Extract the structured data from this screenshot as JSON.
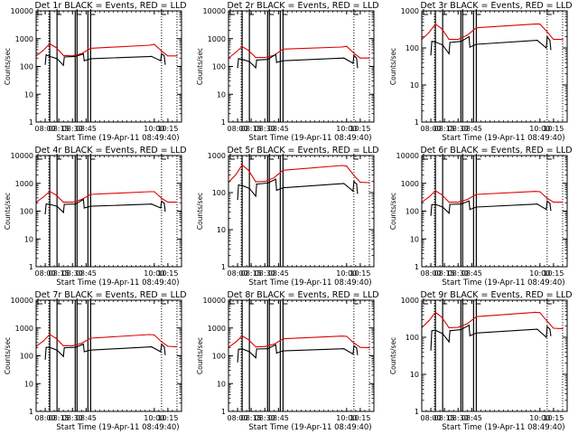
{
  "colors": {
    "events": "#000000",
    "lld": "#e00000",
    "background": "#ffffff",
    "axes": "#000000"
  },
  "chart_data": [
    {
      "type": "line",
      "panel": 1,
      "title": "Det 1r BLACK = Events, RED = LLD",
      "xlabel": "Start Time (19-Apr-11 08:49:40)",
      "ylabel": "Counts/sec",
      "yscale": "log",
      "ylim": [
        1,
        10000
      ],
      "yticks": [
        "1",
        "10",
        "100",
        "1000",
        "10000"
      ],
      "xlim": [
        "07:50",
        "10:30"
      ],
      "xticks": [
        "08:00",
        "08:15",
        "08:30",
        "08:45",
        "10:00",
        "10:15"
      ],
      "legend": "title",
      "series": [
        {
          "name": "LLD",
          "color": "red",
          "x": [
            "07:50",
            "07:58",
            "08:05",
            "08:12",
            "08:20",
            "08:30",
            "08:40",
            "08:50",
            "09:55",
            "10:00",
            "10:08",
            "10:15",
            "10:25"
          ],
          "y": [
            240,
            380,
            650,
            480,
            250,
            240,
            290,
            450,
            580,
            620,
            360,
            240,
            240
          ]
        },
        {
          "name": "Events",
          "color": "black",
          "x": [
            "08:00",
            "08:01",
            "08:05",
            "08:13",
            "08:20",
            "08:21",
            "08:33",
            "08:42",
            "08:43",
            "08:50",
            "09:57",
            "10:07",
            "10:08",
            "10:11",
            "10:12"
          ],
          "y": [
            120,
            260,
            230,
            190,
            110,
            220,
            230,
            280,
            160,
            190,
            230,
            160,
            290,
            240,
            120
          ]
        }
      ]
    },
    {
      "type": "line",
      "panel": 2,
      "title": "Det 2r BLACK = Events, RED = LLD",
      "xlabel": "Start Time (19-Apr-11 08:49:40)",
      "ylabel": "Counts/sec",
      "yscale": "log",
      "ylim": [
        1,
        10000
      ],
      "yticks": [
        "1",
        "10",
        "100",
        "1000",
        "10000"
      ],
      "xlim": [
        "07:50",
        "10:30"
      ],
      "xticks": [
        "08:00",
        "08:15",
        "08:30",
        "08:45",
        "10:00",
        "10:15"
      ],
      "legend": "title",
      "series": [
        {
          "name": "LLD",
          "color": "red",
          "x": [
            "07:50",
            "07:58",
            "08:05",
            "08:12",
            "08:20",
            "08:30",
            "08:40",
            "08:50",
            "09:55",
            "10:00",
            "10:08",
            "10:15",
            "10:25"
          ],
          "y": [
            200,
            320,
            520,
            380,
            210,
            210,
            250,
            420,
            500,
            530,
            300,
            200,
            200
          ]
        },
        {
          "name": "Events",
          "color": "black",
          "x": [
            "08:00",
            "08:01",
            "08:05",
            "08:13",
            "08:20",
            "08:21",
            "08:33",
            "08:42",
            "08:43",
            "08:50",
            "09:57",
            "10:07",
            "10:08",
            "10:11",
            "10:12"
          ],
          "y": [
            90,
            190,
            180,
            150,
            90,
            170,
            180,
            270,
            140,
            160,
            200,
            130,
            250,
            200,
            90
          ]
        }
      ]
    },
    {
      "type": "line",
      "panel": 3,
      "title": "Det 3r BLACK = Events, RED = LLD",
      "xlabel": "Start Time (19-Apr-11 08:49:40)",
      "ylabel": "Counts/sec",
      "yscale": "log",
      "ylim": [
        1,
        1000
      ],
      "yticks": [
        "1",
        "10",
        "100",
        "1000"
      ],
      "xlim": [
        "07:50",
        "10:30"
      ],
      "xticks": [
        "08:00",
        "08:15",
        "08:30",
        "08:45",
        "10:00",
        "10:15"
      ],
      "legend": "title",
      "series": [
        {
          "name": "LLD",
          "color": "red",
          "x": [
            "07:50",
            "07:58",
            "08:05",
            "08:12",
            "08:20",
            "08:30",
            "08:40",
            "08:50",
            "09:55",
            "10:00",
            "10:08",
            "10:15",
            "10:25"
          ],
          "y": [
            170,
            260,
            440,
            330,
            170,
            170,
            220,
            350,
            440,
            440,
            270,
            170,
            170
          ]
        },
        {
          "name": "Events",
          "color": "black",
          "x": [
            "08:00",
            "08:01",
            "08:05",
            "08:13",
            "08:20",
            "08:21",
            "08:33",
            "08:42",
            "08:43",
            "08:50",
            "09:57",
            "10:07",
            "10:08",
            "10:11",
            "10:12"
          ],
          "y": [
            65,
            150,
            145,
            120,
            70,
            140,
            150,
            200,
            105,
            125,
            160,
            100,
            200,
            160,
            90
          ]
        }
      ]
    },
    {
      "type": "line",
      "panel": 4,
      "title": "Det 4r BLACK = Events, RED = LLD",
      "xlabel": "Start Time (19-Apr-11 08:49:40)",
      "ylabel": "Counts/sec",
      "yscale": "log",
      "ylim": [
        1,
        10000
      ],
      "yticks": [
        "1",
        "10",
        "100",
        "1000",
        "10000"
      ],
      "xlim": [
        "07:50",
        "10:30"
      ],
      "xticks": [
        "08:00",
        "08:15",
        "08:30",
        "08:45",
        "10:00",
        "10:15"
      ],
      "legend": "title",
      "series": [
        {
          "name": "LLD",
          "color": "red",
          "x": [
            "07:50",
            "07:58",
            "08:05",
            "08:12",
            "08:20",
            "08:30",
            "08:40",
            "08:50",
            "09:55",
            "10:00",
            "10:08",
            "10:15",
            "10:25"
          ],
          "y": [
            210,
            320,
            510,
            380,
            210,
            210,
            260,
            400,
            500,
            500,
            290,
            210,
            210
          ]
        },
        {
          "name": "Events",
          "color": "black",
          "x": [
            "08:00",
            "08:01",
            "08:05",
            "08:13",
            "08:20",
            "08:21",
            "08:33",
            "08:42",
            "08:43",
            "08:50",
            "09:57",
            "10:07",
            "10:08",
            "10:11",
            "10:12"
          ],
          "y": [
            80,
            180,
            175,
            150,
            90,
            175,
            180,
            260,
            130,
            150,
            180,
            130,
            230,
            190,
            100
          ]
        }
      ]
    },
    {
      "type": "line",
      "panel": 5,
      "title": "Det 5r BLACK = Events, RED = LLD",
      "xlabel": "Start Time (19-Apr-11 08:49:40)",
      "ylabel": "Counts/sec",
      "yscale": "log",
      "ylim": [
        1,
        1000
      ],
      "yticks": [
        "1",
        "10",
        "100",
        "1000"
      ],
      "xlim": [
        "07:50",
        "10:30"
      ],
      "xticks": [
        "08:00",
        "08:15",
        "08:30",
        "08:45",
        "10:00",
        "10:15"
      ],
      "legend": "title",
      "series": [
        {
          "name": "LLD",
          "color": "red",
          "x": [
            "07:50",
            "07:58",
            "08:05",
            "08:12",
            "08:20",
            "08:30",
            "08:40",
            "08:50",
            "09:55",
            "10:00",
            "10:08",
            "10:15",
            "10:25"
          ],
          "y": [
            190,
            300,
            560,
            400,
            195,
            200,
            250,
            400,
            540,
            520,
            290,
            190,
            185
          ]
        },
        {
          "name": "Events",
          "color": "black",
          "x": [
            "08:00",
            "08:01",
            "08:05",
            "08:13",
            "08:20",
            "08:21",
            "08:33",
            "08:42",
            "08:43",
            "08:50",
            "09:57",
            "10:07",
            "10:08",
            "10:11",
            "10:12"
          ],
          "y": [
            65,
            160,
            155,
            130,
            80,
            170,
            180,
            230,
            115,
            135,
            175,
            110,
            200,
            170,
            95
          ]
        }
      ]
    },
    {
      "type": "line",
      "panel": 6,
      "title": "Det 6r BLACK = Events, RED = LLD",
      "xlabel": "Start Time (19-Apr-11 08:49:40)",
      "ylabel": "Counts/sec",
      "yscale": "log",
      "ylim": [
        1,
        10000
      ],
      "yticks": [
        "1",
        "10",
        "100",
        "1000",
        "10000"
      ],
      "xlim": [
        "07:50",
        "10:30"
      ],
      "xticks": [
        "08:00",
        "08:15",
        "08:30",
        "08:45",
        "10:00",
        "10:15"
      ],
      "legend": "title",
      "series": [
        {
          "name": "LLD",
          "color": "red",
          "x": [
            "07:50",
            "07:58",
            "08:05",
            "08:12",
            "08:20",
            "08:30",
            "08:40",
            "08:50",
            "09:55",
            "10:00",
            "10:08",
            "10:15",
            "10:25"
          ],
          "y": [
            210,
            320,
            540,
            390,
            210,
            210,
            260,
            400,
            510,
            500,
            290,
            210,
            210
          ]
        },
        {
          "name": "Events",
          "color": "black",
          "x": [
            "08:00",
            "08:01",
            "08:05",
            "08:13",
            "08:20",
            "08:21",
            "08:33",
            "08:42",
            "08:43",
            "08:50",
            "09:57",
            "10:07",
            "10:08",
            "10:11",
            "10:12"
          ],
          "y": [
            70,
            170,
            175,
            140,
            85,
            175,
            180,
            230,
            115,
            140,
            180,
            115,
            230,
            190,
            105
          ]
        }
      ]
    },
    {
      "type": "line",
      "panel": 7,
      "title": "Det 7r BLACK = Events, RED = LLD",
      "xlabel": "Start Time (19-Apr-11 08:49:40)",
      "ylabel": "Counts/sec",
      "yscale": "log",
      "ylim": [
        1,
        10000
      ],
      "yticks": [
        "1",
        "10",
        "100",
        "1000",
        "10000"
      ],
      "xlim": [
        "07:50",
        "10:30"
      ],
      "xticks": [
        "08:00",
        "08:15",
        "08:30",
        "08:45",
        "10:00",
        "10:15"
      ],
      "legend": "title",
      "series": [
        {
          "name": "LLD",
          "color": "red",
          "x": [
            "07:50",
            "07:58",
            "08:05",
            "08:12",
            "08:20",
            "08:30",
            "08:40",
            "08:50",
            "09:55",
            "10:00",
            "10:08",
            "10:15",
            "10:25"
          ],
          "y": [
            220,
            340,
            590,
            420,
            230,
            230,
            280,
            430,
            580,
            560,
            320,
            220,
            210
          ]
        },
        {
          "name": "Events",
          "color": "black",
          "x": [
            "08:00",
            "08:01",
            "08:05",
            "08:13",
            "08:20",
            "08:21",
            "08:33",
            "08:42",
            "08:43",
            "08:50",
            "09:57",
            "10:07",
            "10:08",
            "10:11",
            "10:12"
          ],
          "y": [
            75,
            200,
            200,
            160,
            95,
            195,
            200,
            260,
            140,
            160,
            210,
            140,
            260,
            210,
            110
          ]
        }
      ]
    },
    {
      "type": "line",
      "panel": 8,
      "title": "Det 8r BLACK = Events, RED = LLD",
      "xlabel": "Start Time (19-Apr-11 08:49:40)",
      "ylabel": "Counts/sec",
      "yscale": "log",
      "ylim": [
        1,
        10000
      ],
      "yticks": [
        "1",
        "10",
        "100",
        "1000",
        "10000"
      ],
      "xlim": [
        "07:50",
        "10:30"
      ],
      "xticks": [
        "08:00",
        "08:15",
        "08:30",
        "08:45",
        "10:00",
        "10:15"
      ],
      "legend": "title",
      "series": [
        {
          "name": "LLD",
          "color": "red",
          "x": [
            "07:50",
            "07:58",
            "08:05",
            "08:12",
            "08:20",
            "08:30",
            "08:40",
            "08:50",
            "09:55",
            "10:00",
            "10:08",
            "10:15",
            "10:25"
          ],
          "y": [
            200,
            310,
            520,
            380,
            210,
            215,
            260,
            410,
            510,
            500,
            290,
            200,
            195
          ]
        },
        {
          "name": "Events",
          "color": "black",
          "x": [
            "08:00",
            "08:01",
            "08:05",
            "08:13",
            "08:20",
            "08:21",
            "08:33",
            "08:42",
            "08:43",
            "08:50",
            "09:57",
            "10:07",
            "10:08",
            "10:11",
            "10:12"
          ],
          "y": [
            60,
            170,
            180,
            140,
            85,
            175,
            180,
            250,
            125,
            150,
            180,
            115,
            230,
            190,
            110
          ]
        }
      ]
    },
    {
      "type": "line",
      "panel": 9,
      "title": "Det 9r BLACK = Events, RED = LLD",
      "xlabel": "Start Time (19-Apr-11 08:49:40)",
      "ylabel": "Counts/sec",
      "yscale": "log",
      "ylim": [
        1,
        1000
      ],
      "yticks": [
        "1",
        "10",
        "100",
        "1000"
      ],
      "xlim": [
        "07:50",
        "10:30"
      ],
      "xticks": [
        "08:00",
        "08:15",
        "08:30",
        "08:45",
        "10:00",
        "10:15"
      ],
      "legend": "title",
      "series": [
        {
          "name": "LLD",
          "color": "red",
          "x": [
            "07:50",
            "07:58",
            "08:05",
            "08:12",
            "08:20",
            "08:30",
            "08:40",
            "08:50",
            "09:55",
            "10:00",
            "10:08",
            "10:15",
            "10:25"
          ],
          "y": [
            180,
            280,
            470,
            350,
            180,
            185,
            230,
            360,
            470,
            460,
            270,
            175,
            170
          ]
        },
        {
          "name": "Events",
          "color": "black",
          "x": [
            "08:00",
            "08:01",
            "08:05",
            "08:13",
            "08:20",
            "08:21",
            "08:33",
            "08:42",
            "08:43",
            "08:50",
            "09:57",
            "10:07",
            "10:08",
            "10:11",
            "10:12"
          ],
          "y": [
            45,
            150,
            155,
            125,
            75,
            150,
            160,
            210,
            110,
            130,
            165,
            100,
            195,
            165,
            110
          ]
        }
      ]
    }
  ],
  "vertical_markers": {
    "solid": [
      "08:05",
      "08:13",
      "08:33",
      "08:35",
      "08:47",
      "08:50"
    ],
    "dotted": [
      "08:04",
      "10:08",
      "10:25"
    ],
    "flags_small_ylim": [
      "E",
      "F",
      "F",
      "F",
      "E"
    ]
  }
}
